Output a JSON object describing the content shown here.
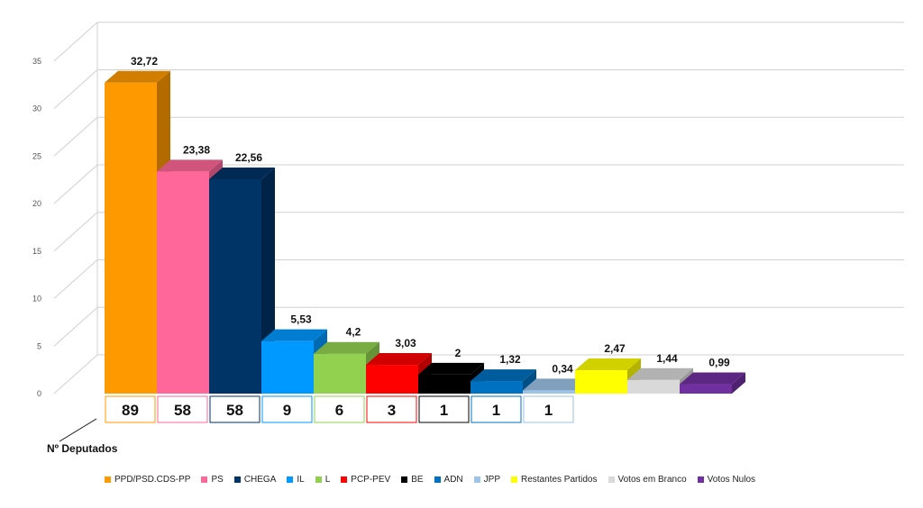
{
  "chart_data": {
    "type": "bar",
    "categories": [
      "PPD/PSD.CDS-PP",
      "PS",
      "CHEGA",
      "IL",
      "L",
      "PCP-PEV",
      "BE",
      "ADN",
      "JPP",
      "Restantes Partidos",
      "Votos em Branco",
      "Votos Nulos"
    ],
    "values": [
      32.72,
      23.38,
      22.56,
      5.53,
      4.2,
      3.03,
      2,
      1.32,
      0.34,
      2.47,
      1.44,
      0.99
    ],
    "value_labels": [
      "32,72",
      "23,38",
      "22,56",
      "5,53",
      "4,2",
      "3,03",
      "2",
      "1,32",
      "0,34",
      "2,47",
      "1,44",
      "0,99"
    ],
    "colors": [
      "#ff9900",
      "#ff6699",
      "#003366",
      "#0099ff",
      "#92d050",
      "#ff0000",
      "#000000",
      "#0070c0",
      "#9dc3e6",
      "#ffff00",
      "#d9d9d9",
      "#7030a0"
    ],
    "ylim": [
      0,
      35
    ],
    "yticks": [
      "0",
      "5",
      "10",
      "15",
      "20",
      "25",
      "30",
      "35"
    ],
    "grid": true,
    "three_d": true,
    "legend_position": "bottom",
    "deputados_label": "Nº Deputados",
    "deputados": [
      "89",
      "58",
      "58",
      "9",
      "6",
      "3",
      "1",
      "1",
      "1"
    ]
  }
}
